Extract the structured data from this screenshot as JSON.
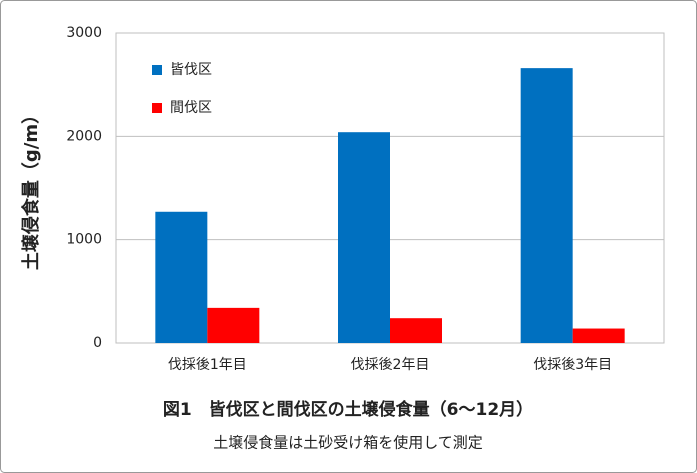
{
  "chart_data": {
    "type": "bar",
    "title": "図1　皆伐区と間伐区の土壌侵食量（6～12月）",
    "subtitle": "土壌侵食量は土砂受け箱を使用して測定",
    "y_label": "土壌侵食量（g/m）",
    "categories": [
      "伐採後1年目",
      "伐採後2年目",
      "伐採後3年目"
    ],
    "series": [
      {
        "name": "皆伐区",
        "color": "#0070c0",
        "values": [
          1270,
          2040,
          2660
        ]
      },
      {
        "name": "間伐区",
        "color": "#ff0000",
        "values": [
          340,
          240,
          140
        ]
      }
    ],
    "ylim": [
      0,
      3000
    ],
    "yticks": [
      0,
      1000,
      2000,
      3000
    ],
    "grid": true,
    "legend": "top-left"
  }
}
